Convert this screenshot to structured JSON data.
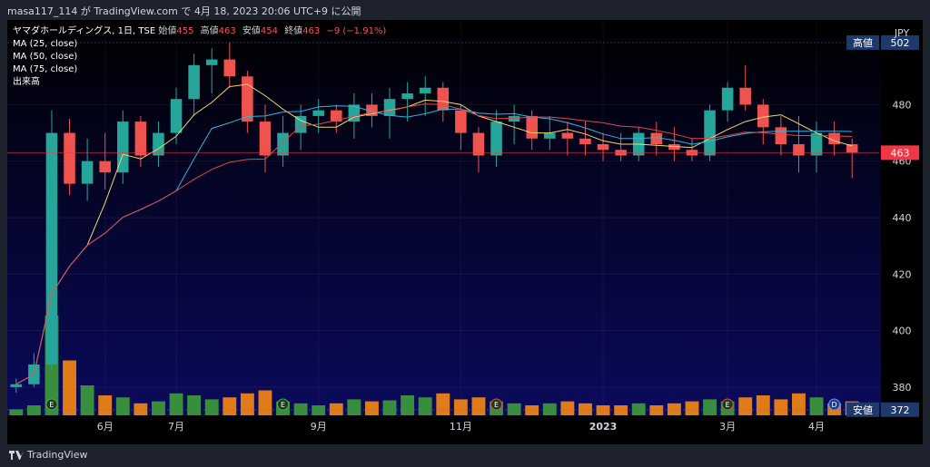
{
  "header": {
    "publish_info": "masa117_114 が TradingView.com で 4月 18, 2023 20:06 UTC+9 に公開"
  },
  "legend": {
    "symbol": "ヤマダホールディングス, 1日, TSE",
    "open_label": "始値",
    "open_value": "455",
    "high_label": "高値",
    "high_value": "463",
    "low_label": "安値",
    "low_value": "454",
    "close_label": "終値",
    "close_value": "463",
    "change": "−9 (−1.91%)",
    "ma25": "MA (25, close)",
    "ma50": "MA (50, close)",
    "ma75": "MA (75, close)",
    "volume": "出来高"
  },
  "footer": {
    "logo_text": "TradingView"
  },
  "colors": {
    "up": "#26a69a",
    "down": "#ef5350",
    "ma25": "#f5d76e",
    "ma50": "#2eb5e0",
    "ma75": "#e04848",
    "vol_up": "#388e3c",
    "vol_down": "#e07b1a"
  },
  "chart_data": {
    "type": "candlestick",
    "currency": "JPY",
    "ylim": [
      370,
      510
    ],
    "y_ticks": [
      "380",
      "400",
      "420",
      "440",
      "460",
      "480"
    ],
    "x_ticks": [
      "6月",
      "7月",
      "9月",
      "11月",
      "2023",
      "3月",
      "4月"
    ],
    "price_badges": [
      {
        "label": "高値",
        "value": "502"
      },
      {
        "label": "",
        "value": "463"
      },
      {
        "label": "安値",
        "value": "372"
      }
    ],
    "event_markers": [
      "E",
      "E",
      "E",
      "E",
      "D"
    ],
    "ohlc_weekly": [
      [
        380,
        383,
        378,
        381
      ],
      [
        381,
        392,
        380,
        388
      ],
      [
        388,
        478,
        386,
        470
      ],
      [
        470,
        475,
        448,
        452
      ],
      [
        452,
        468,
        446,
        460
      ],
      [
        460,
        470,
        450,
        456
      ],
      [
        456,
        478,
        452,
        474
      ],
      [
        474,
        476,
        458,
        462
      ],
      [
        462,
        474,
        458,
        470
      ],
      [
        470,
        486,
        466,
        482
      ],
      [
        482,
        498,
        476,
        494
      ],
      [
        494,
        500,
        484,
        496
      ],
      [
        496,
        502,
        486,
        490
      ],
      [
        490,
        492,
        470,
        474
      ],
      [
        474,
        480,
        456,
        462
      ],
      [
        462,
        476,
        458,
        470
      ],
      [
        470,
        480,
        464,
        476
      ],
      [
        476,
        482,
        470,
        478
      ],
      [
        478,
        480,
        470,
        474
      ],
      [
        474,
        484,
        468,
        480
      ],
      [
        480,
        484,
        472,
        476
      ],
      [
        476,
        486,
        468,
        482
      ],
      [
        482,
        488,
        474,
        484
      ],
      [
        484,
        490,
        476,
        486
      ],
      [
        486,
        488,
        474,
        478
      ],
      [
        478,
        480,
        464,
        470
      ],
      [
        470,
        472,
        456,
        462
      ],
      [
        462,
        478,
        458,
        474
      ],
      [
        474,
        480,
        466,
        476
      ],
      [
        476,
        478,
        464,
        468
      ],
      [
        468,
        476,
        464,
        470
      ],
      [
        470,
        474,
        462,
        468
      ],
      [
        468,
        474,
        462,
        466
      ],
      [
        466,
        470,
        460,
        464
      ],
      [
        464,
        470,
        460,
        462
      ],
      [
        462,
        472,
        460,
        470
      ],
      [
        470,
        474,
        462,
        466
      ],
      [
        466,
        472,
        460,
        464
      ],
      [
        464,
        468,
        460,
        462
      ],
      [
        462,
        480,
        460,
        478
      ],
      [
        478,
        488,
        474,
        486
      ],
      [
        486,
        494,
        478,
        480
      ],
      [
        480,
        482,
        466,
        472
      ],
      [
        472,
        476,
        462,
        466
      ],
      [
        466,
        476,
        456,
        462
      ],
      [
        462,
        474,
        456,
        470
      ],
      [
        470,
        474,
        462,
        466
      ],
      [
        466,
        468,
        454,
        463
      ]
    ],
    "volume_relative": [
      0.06,
      0.1,
      1.0,
      0.55,
      0.3,
      0.2,
      0.18,
      0.12,
      0.14,
      0.22,
      0.2,
      0.16,
      0.18,
      0.22,
      0.25,
      0.14,
      0.12,
      0.1,
      0.12,
      0.16,
      0.14,
      0.15,
      0.2,
      0.18,
      0.22,
      0.16,
      0.18,
      0.14,
      0.12,
      0.1,
      0.12,
      0.14,
      0.12,
      0.1,
      0.1,
      0.12,
      0.1,
      0.12,
      0.14,
      0.16,
      0.14,
      0.18,
      0.2,
      0.16,
      0.22,
      0.18,
      0.12,
      0.14
    ]
  }
}
